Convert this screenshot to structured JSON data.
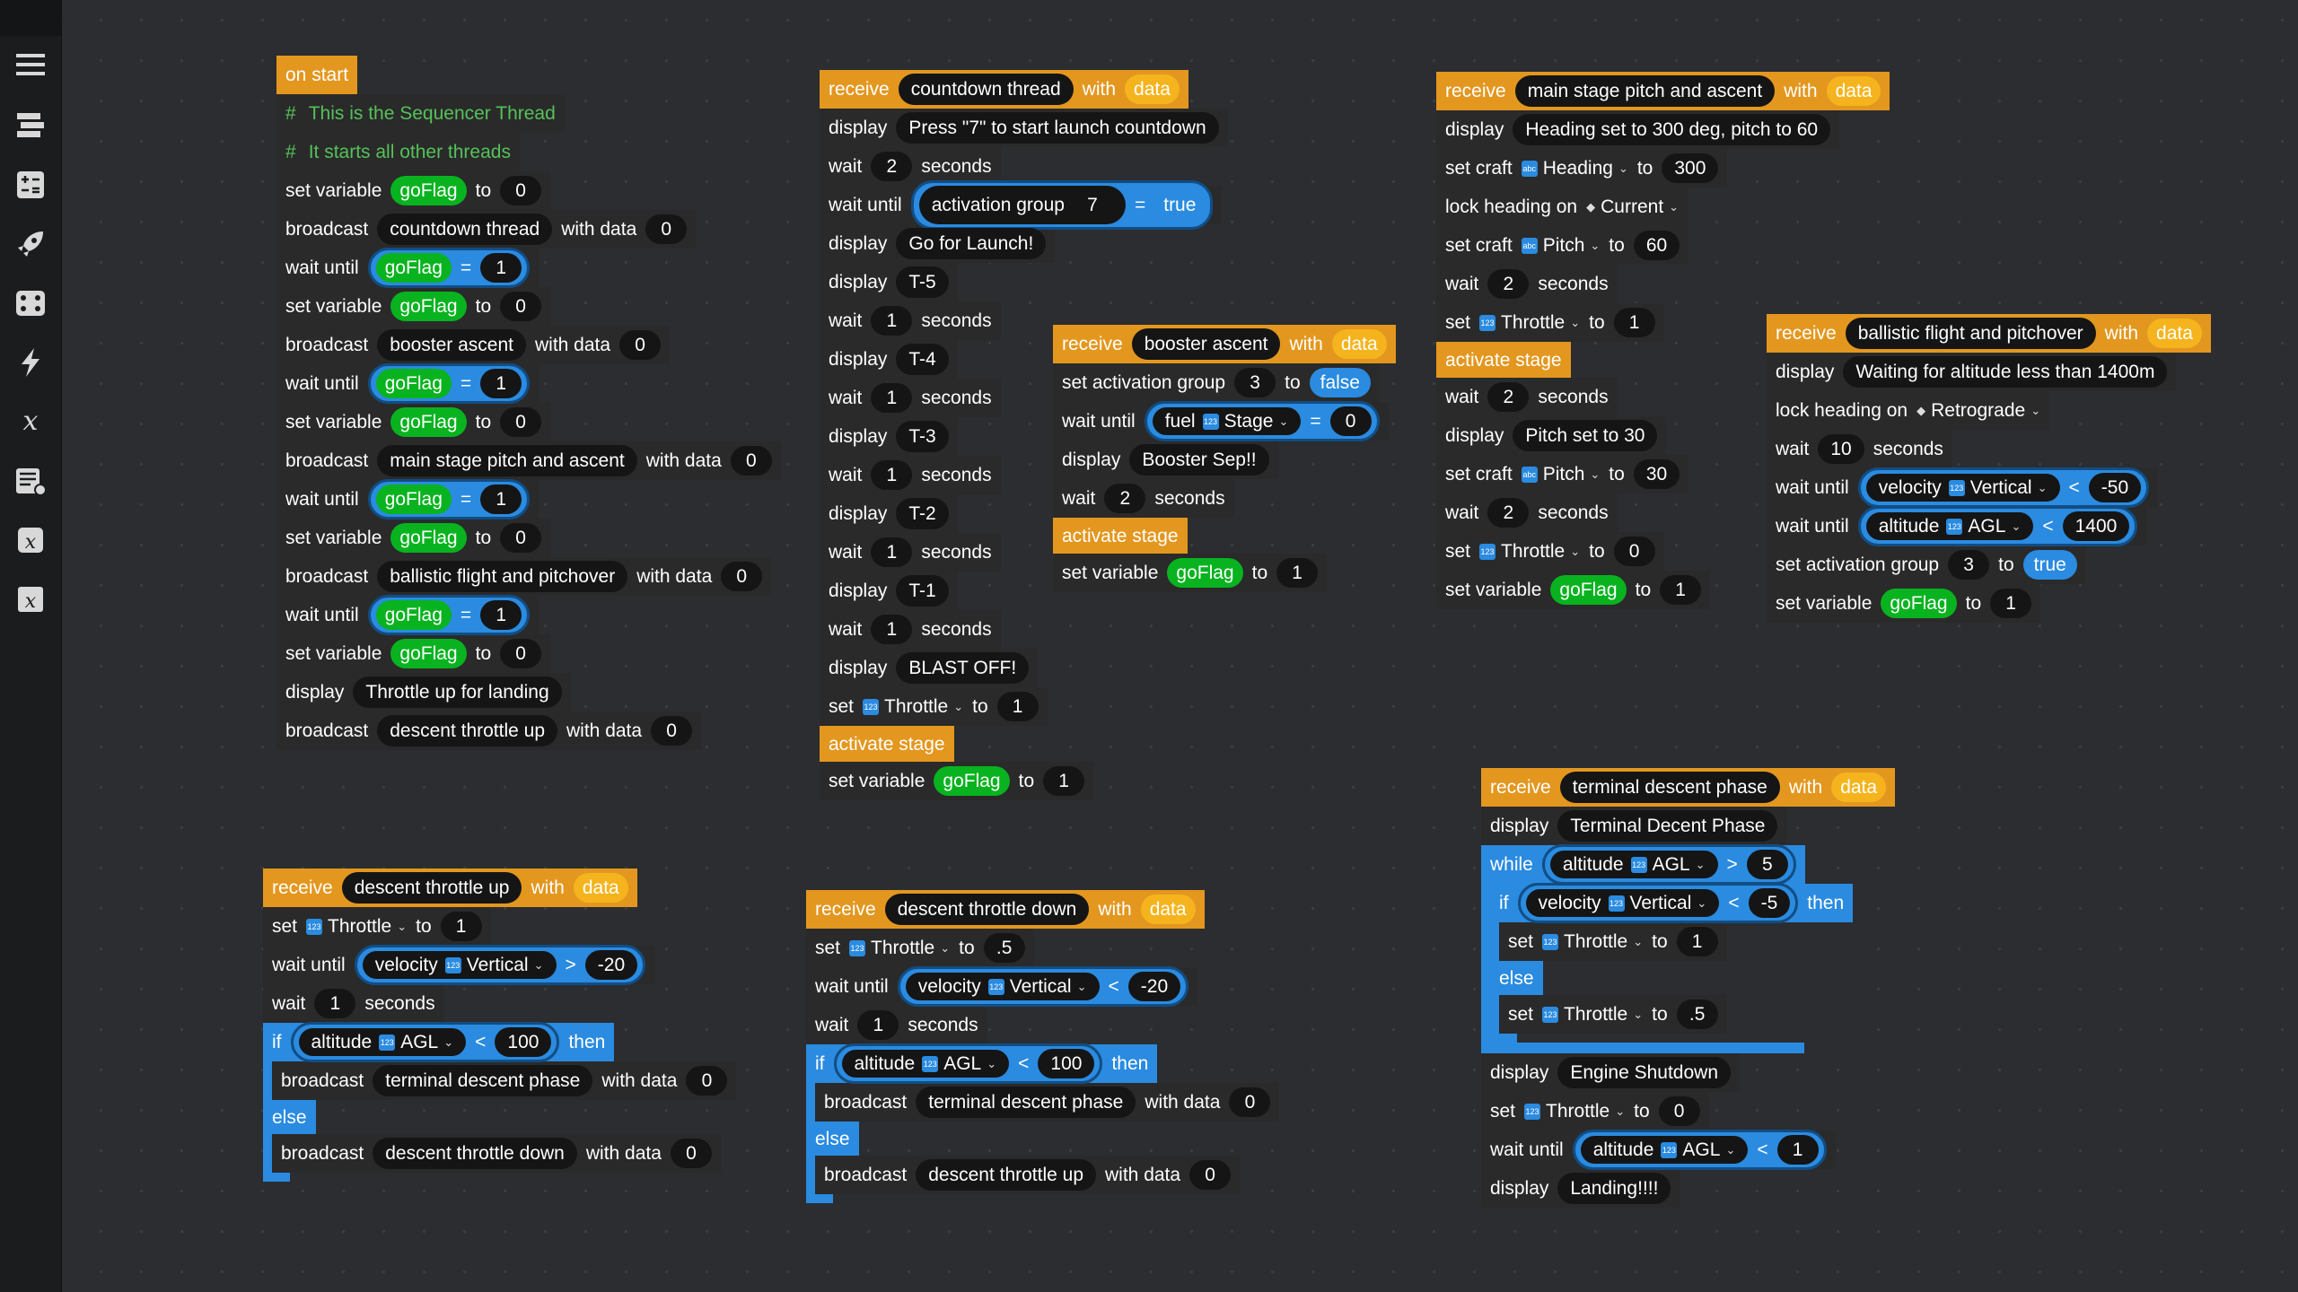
{
  "sidebar": {
    "items": [
      {
        "name": "menu-icon"
      },
      {
        "name": "blocks-icon"
      },
      {
        "name": "calculator-icon"
      },
      {
        "name": "rocket-icon"
      },
      {
        "name": "gamepad-icon"
      },
      {
        "name": "lightning-icon"
      },
      {
        "name": "variable-x-icon"
      },
      {
        "name": "list-add-icon"
      },
      {
        "name": "function-x-icon"
      },
      {
        "name": "function-x-alt-icon"
      }
    ]
  },
  "labels": {
    "on_start": "on start",
    "receive": "receive",
    "with": "with",
    "data": "data",
    "display": "display",
    "wait": "wait",
    "seconds": "seconds",
    "wait_until": "wait until",
    "set_variable": "set variable",
    "to": "to",
    "broadcast": "broadcast",
    "with_data": "with data",
    "set": "set",
    "set_craft": "set craft",
    "lock_heading_on": "lock heading on",
    "activate_stage": "activate stage",
    "set_activation_group": "set activation group",
    "activation_group": "activation group",
    "if": "if",
    "then": "then",
    "else": "else",
    "while": "while",
    "eq": "=",
    "lt": "<",
    "gt": ">",
    "goFlag": "goFlag",
    "Throttle": "Throttle",
    "Heading": "Heading",
    "Pitch": "Pitch",
    "Current": "Current",
    "Retrograde": "Retrograde",
    "fuel": "fuel",
    "Stage": "Stage",
    "velocity": "velocity",
    "Vertical": "Vertical",
    "altitude": "altitude",
    "AGL": "AGL",
    "true": "true",
    "false": "false",
    "icon_num": "123",
    "icon_abc": "abc"
  },
  "s1": {
    "comment1": "This is the Sequencer Thread",
    "comment2": "It starts all other threads",
    "msg_countdown": "countdown thread",
    "msg_booster": "booster ascent",
    "msg_main": "main stage pitch and ascent",
    "msg_ballistic": "ballistic flight and pitchover",
    "msg_descent_up": "descent throttle up",
    "display_text": "Throttle up for landing",
    "v0": "0",
    "v1": "1"
  },
  "s2": {
    "thread": "countdown thread",
    "d1": "Press \"7\" to start launch countdown",
    "w2": "2",
    "w1": "1",
    "ag": "7",
    "d2": "Go for Launch!",
    "t5": "T-5",
    "t4": "T-4",
    "t3": "T-3",
    "t2": "T-2",
    "t1": "T-1",
    "blast": "BLAST OFF!",
    "one": "1"
  },
  "s3": {
    "thread": "booster ascent",
    "ag": "3",
    "zero": "0",
    "sep": "Booster Sep!!",
    "w2": "2",
    "one": "1"
  },
  "s4": {
    "thread": "main stage pitch and ascent",
    "d1": "Heading set to 300 deg, pitch to 60",
    "heading": "300",
    "pitch1": "60",
    "w2": "2",
    "one": "1",
    "d2": "Pitch set to 30",
    "pitch2": "30",
    "zero": "0"
  },
  "s5": {
    "thread": "ballistic flight and pitchover",
    "d1": "Waiting for altitude less than 1400m",
    "w10": "10",
    "vel": "-50",
    "alt": "1400",
    "ag": "3",
    "one": "1"
  },
  "s6": {
    "thread": "descent throttle up",
    "one": "1",
    "vel": "-20",
    "alt": "100",
    "msg_terminal": "terminal descent phase",
    "msg_down": "descent throttle down",
    "zero": "0"
  },
  "s7": {
    "thread": "descent throttle down",
    "half": ".5",
    "vel": "-20",
    "one": "1",
    "alt": "100",
    "msg_terminal": "terminal descent phase",
    "msg_up": "descent throttle up",
    "zero": "0"
  },
  "s8": {
    "thread": "terminal descent phase",
    "d1": "Terminal Decent Phase",
    "alt5": "5",
    "vel": "-5",
    "one": "1",
    "half": ".5",
    "d2": "Engine Shutdown",
    "zero": "0",
    "alt1": "1",
    "d3": "Landing!!!!"
  }
}
